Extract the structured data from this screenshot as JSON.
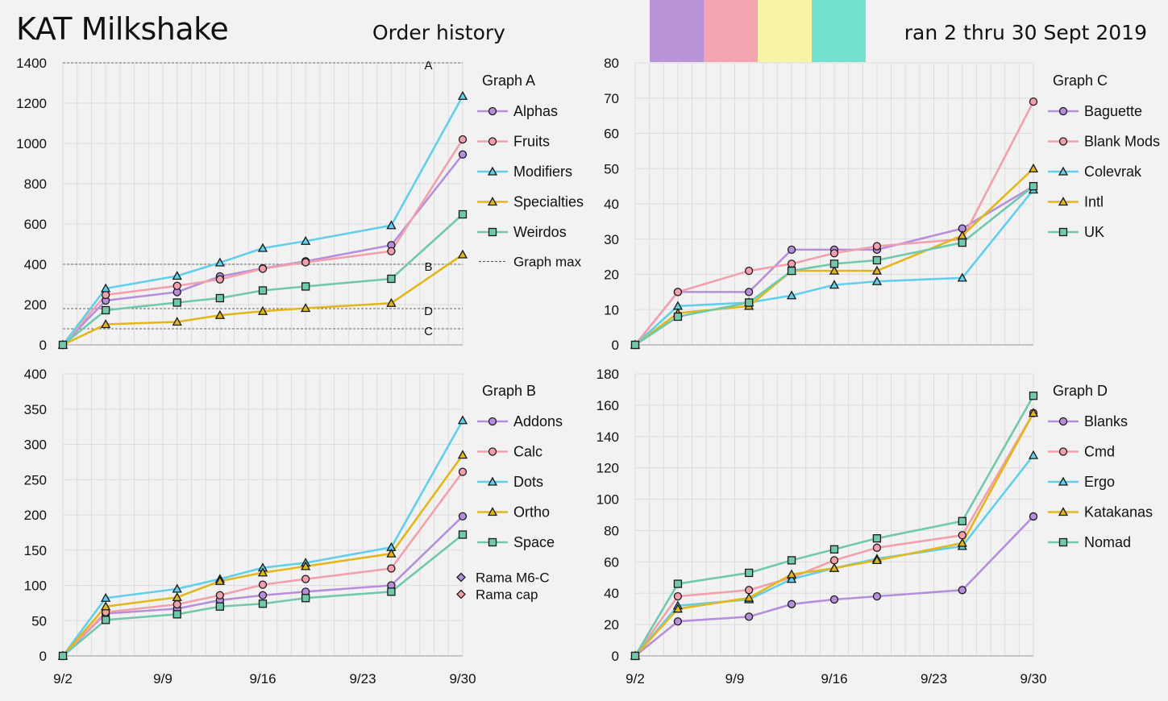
{
  "header": {
    "title": "KAT Milkshake",
    "subtitle": "Order history",
    "date_range": "ran 2 thru 30 Sept 2019"
  },
  "swatches": [
    "#b994d9",
    "#f4a4b0",
    "#f7f4a6",
    "#72e2cf"
  ],
  "x_ticks": [
    {
      "label": "9/2",
      "day": 2
    },
    {
      "label": "9/9",
      "day": 9
    },
    {
      "label": "9/16",
      "day": 16
    },
    {
      "label": "9/23",
      "day": 23
    },
    {
      "label": "9/30",
      "day": 30
    }
  ],
  "chart_data": [
    {
      "id": "A",
      "type": "line",
      "title": "Graph A",
      "xlim": [
        2,
        30
      ],
      "ylim": [
        0,
        1400
      ],
      "yticks": [
        0,
        200,
        400,
        600,
        800,
        1000,
        1200,
        1400
      ],
      "x": [
        2,
        5,
        10,
        13,
        16,
        19,
        25,
        30
      ],
      "series": [
        {
          "name": "Alphas",
          "color": "#b58fdb",
          "marker": "circle",
          "values": [
            0,
            220,
            262,
            340,
            380,
            415,
            495,
            945
          ]
        },
        {
          "name": "Fruits",
          "color": "#f2a0ad",
          "marker": "circle",
          "values": [
            0,
            248,
            293,
            325,
            378,
            410,
            465,
            1020
          ]
        },
        {
          "name": "Modifiers",
          "color": "#62cfea",
          "marker": "triangle",
          "values": [
            0,
            280,
            342,
            408,
            480,
            515,
            593,
            1235
          ]
        },
        {
          "name": "Specialties",
          "color": "#e2b71c",
          "marker": "triangle",
          "values": [
            0,
            102,
            114,
            147,
            167,
            182,
            207,
            448
          ]
        },
        {
          "name": "Weirdos",
          "color": "#71c8ad",
          "marker": "square",
          "values": [
            0,
            172,
            210,
            232,
            270,
            290,
            328,
            648
          ]
        }
      ],
      "ref_lines": [
        {
          "label": "A",
          "value": 1400
        },
        {
          "label": "B",
          "value": 400
        },
        {
          "label": "D",
          "value": 180
        },
        {
          "label": "C",
          "value": 80
        }
      ],
      "ref_legend": "Graph max"
    },
    {
      "id": "C",
      "type": "line",
      "title": "Graph C",
      "xlim": [
        2,
        30
      ],
      "ylim": [
        0,
        80
      ],
      "yticks": [
        0,
        10,
        20,
        30,
        40,
        50,
        60,
        70,
        80
      ],
      "x": [
        2,
        5,
        10,
        13,
        16,
        19,
        25,
        30
      ],
      "series": [
        {
          "name": "Baguette",
          "color": "#b58fdb",
          "marker": "circle",
          "values": [
            0,
            15,
            15,
            27,
            27,
            27,
            33,
            45
          ]
        },
        {
          "name": "Blank Mods",
          "color": "#f2a0ad",
          "marker": "circle",
          "values": [
            0,
            15,
            21,
            23,
            26,
            28,
            30,
            69
          ]
        },
        {
          "name": "Colevrak",
          "color": "#62cfea",
          "marker": "triangle",
          "values": [
            0,
            11,
            12,
            14,
            17,
            18,
            19,
            44
          ]
        },
        {
          "name": "Intl",
          "color": "#e2b71c",
          "marker": "triangle",
          "values": [
            0,
            9,
            11,
            21,
            21,
            21,
            31,
            50
          ]
        },
        {
          "name": "UK",
          "color": "#71c8ad",
          "marker": "square",
          "values": [
            0,
            8,
            12,
            21,
            23,
            24,
            29,
            45
          ]
        }
      ]
    },
    {
      "id": "B",
      "type": "line",
      "title": "Graph B",
      "xlim": [
        2,
        30
      ],
      "ylim": [
        0,
        400
      ],
      "yticks": [
        0,
        50,
        100,
        150,
        200,
        250,
        300,
        350,
        400
      ],
      "x": [
        2,
        5,
        10,
        13,
        16,
        19,
        25,
        30
      ],
      "series": [
        {
          "name": "Addons",
          "color": "#b58fdb",
          "marker": "circle",
          "values": [
            0,
            60,
            67,
            79,
            86,
            91,
            100,
            198
          ]
        },
        {
          "name": "Calc",
          "color": "#f2a0ad",
          "marker": "circle",
          "values": [
            0,
            62,
            73,
            86,
            101,
            109,
            124,
            261
          ]
        },
        {
          "name": "Dots",
          "color": "#62cfea",
          "marker": "triangle",
          "values": [
            0,
            82,
            95,
            109,
            125,
            132,
            154,
            334
          ]
        },
        {
          "name": "Ortho",
          "color": "#e2b71c",
          "marker": "triangle",
          "values": [
            0,
            70,
            83,
            106,
            118,
            127,
            145,
            285
          ]
        },
        {
          "name": "Space",
          "color": "#71c8ad",
          "marker": "square",
          "values": [
            0,
            51,
            59,
            70,
            74,
            82,
            91,
            172
          ]
        }
      ],
      "extra_legend": [
        {
          "name": "Rama M6-C",
          "color": "#b58fdb",
          "marker": "diamond"
        },
        {
          "name": "Rama cap",
          "color": "#f2a0ad",
          "marker": "diamond"
        }
      ]
    },
    {
      "id": "D",
      "type": "line",
      "title": "Graph D",
      "xlim": [
        2,
        30
      ],
      "ylim": [
        0,
        180
      ],
      "yticks": [
        0,
        20,
        40,
        60,
        80,
        100,
        120,
        140,
        160,
        180
      ],
      "x": [
        2,
        5,
        10,
        13,
        16,
        19,
        25,
        30
      ],
      "series": [
        {
          "name": "Blanks",
          "color": "#b58fdb",
          "marker": "circle",
          "values": [
            0,
            22,
            25,
            33,
            36,
            38,
            42,
            89
          ]
        },
        {
          "name": "Cmd",
          "color": "#f2a0ad",
          "marker": "circle",
          "values": [
            0,
            38,
            42,
            50,
            61,
            69,
            77,
            155
          ]
        },
        {
          "name": "Ergo",
          "color": "#62cfea",
          "marker": "triangle",
          "values": [
            0,
            32,
            36,
            49,
            56,
            62,
            70,
            128
          ]
        },
        {
          "name": "Katakanas",
          "color": "#e2b71c",
          "marker": "triangle",
          "values": [
            0,
            30,
            37,
            52,
            56,
            61,
            72,
            155
          ]
        },
        {
          "name": "Nomad",
          "color": "#71c8ad",
          "marker": "square",
          "values": [
            0,
            46,
            53,
            61,
            68,
            75,
            86,
            166
          ]
        }
      ]
    }
  ]
}
